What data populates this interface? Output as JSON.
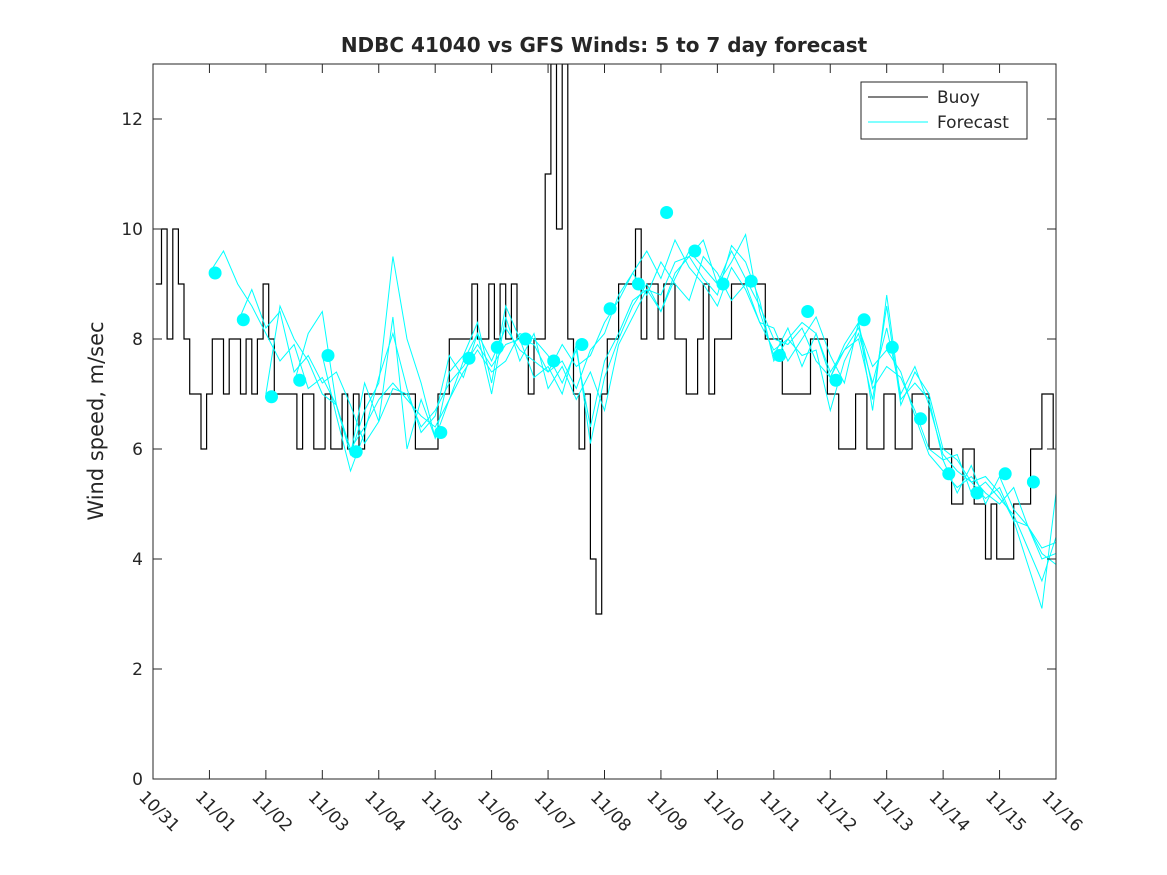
{
  "chart_data": {
    "type": "line",
    "title": "NDBC 41040 vs GFS Winds: 5 to 7 day forecast",
    "xlabel": "",
    "ylabel": "Wind speed, m/sec",
    "ylim": [
      0,
      13
    ],
    "yticks": [
      0,
      2,
      4,
      6,
      8,
      10,
      12
    ],
    "xlim": [
      0,
      16
    ],
    "xtick_labels": [
      "10/31",
      "11/01",
      "11/02",
      "11/03",
      "11/04",
      "11/05",
      "11/06",
      "11/07",
      "11/08",
      "11/09",
      "11/10",
      "11/11",
      "11/12",
      "11/13",
      "11/14",
      "11/15",
      "11/16"
    ],
    "legend": {
      "position": "top-right",
      "entries": [
        "Buoy",
        "Forecast"
      ]
    },
    "colors": {
      "buoy": "#000000",
      "forecast": "#00ffff",
      "axis": "#262626"
    },
    "buoy": {
      "x": [
        0.05,
        0.15,
        0.25,
        0.35,
        0.45,
        0.55,
        0.65,
        0.75,
        0.85,
        0.95,
        1.05,
        1.15,
        1.25,
        1.35,
        1.45,
        1.55,
        1.65,
        1.75,
        1.85,
        1.95,
        2.05,
        2.15,
        2.25,
        2.35,
        2.45,
        2.55,
        2.65,
        2.75,
        2.85,
        2.95,
        3.05,
        3.15,
        3.25,
        3.35,
        3.45,
        3.55,
        3.65,
        3.75,
        3.85,
        3.95,
        4.05,
        4.15,
        4.25,
        4.35,
        4.45,
        4.55,
        4.65,
        4.75,
        4.85,
        4.95,
        5.05,
        5.15,
        5.25,
        5.35,
        5.45,
        5.55,
        5.65,
        5.75,
        5.85,
        5.95,
        6.05,
        6.15,
        6.25,
        6.35,
        6.45,
        6.55,
        6.65,
        6.75,
        6.85,
        6.95,
        7.05,
        7.15,
        7.25,
        7.35,
        7.45,
        7.55,
        7.65,
        7.75,
        7.85,
        7.95,
        8.05,
        8.15,
        8.25,
        8.35,
        8.45,
        8.55,
        8.65,
        8.75,
        8.85,
        8.95,
        9.05,
        9.15,
        9.25,
        9.35,
        9.45,
        9.55,
        9.65,
        9.75,
        9.85,
        9.95,
        10.05,
        10.15,
        10.25,
        10.35,
        10.45,
        10.55,
        10.65,
        10.75,
        10.85,
        10.95,
        11.05,
        11.15,
        11.25,
        11.35,
        11.45,
        11.55,
        11.65,
        11.75,
        11.85,
        11.95,
        12.05,
        12.15,
        12.25,
        12.35,
        12.45,
        12.55,
        12.65,
        12.75,
        12.85,
        12.95,
        13.05,
        13.15,
        13.25,
        13.35,
        13.45,
        13.55,
        13.65,
        13.75,
        13.85,
        13.95,
        14.05,
        14.15,
        14.25,
        14.35,
        14.45,
        14.55,
        14.65,
        14.75,
        14.85,
        14.95,
        15.05,
        15.15,
        15.25,
        15.35,
        15.45,
        15.55,
        15.65,
        15.75,
        15.85,
        15.95
      ],
      "y": [
        9,
        10,
        8,
        10,
        9,
        8,
        7,
        7,
        6,
        7,
        8,
        8,
        7,
        8,
        8,
        7,
        8,
        7,
        8,
        9,
        8,
        7,
        7,
        7,
        7,
        6,
        7,
        7,
        6,
        6,
        7,
        6,
        6,
        7,
        6,
        7,
        6,
        7,
        7,
        7,
        7,
        7,
        7,
        7,
        7,
        7,
        6,
        6,
        6,
        6,
        7,
        7,
        8,
        8,
        8,
        8,
        9,
        8,
        8,
        9,
        8,
        9,
        8,
        9,
        8,
        8,
        7,
        8,
        8,
        11,
        13,
        10,
        13,
        8,
        7,
        6,
        7,
        4,
        3,
        7,
        8,
        8,
        9,
        9,
        9,
        10,
        8,
        9,
        9,
        8,
        9,
        9,
        8,
        8,
        7,
        7,
        8,
        9,
        7,
        8,
        8,
        8,
        9,
        9,
        9,
        9,
        9,
        9,
        8,
        8,
        8,
        7,
        7,
        7,
        7,
        7,
        8,
        8,
        8,
        7,
        7,
        6,
        6,
        6,
        7,
        7,
        6,
        6,
        6,
        7,
        7,
        6,
        6,
        6,
        7,
        7,
        7,
        6,
        6,
        6,
        6,
        5,
        5,
        6,
        6,
        5,
        5,
        4,
        5,
        4,
        4,
        4,
        5,
        5,
        5,
        6,
        6,
        7,
        7,
        6
      ]
    },
    "forecasts": [
      {
        "name": "Forecast 1",
        "x": [
          1.0,
          1.25,
          1.5,
          1.75,
          2.0,
          2.25,
          2.5,
          2.75,
          3.0,
          3.25,
          3.5,
          3.75,
          4.0,
          4.25,
          4.5,
          4.75,
          5.0,
          5.25,
          5.5,
          5.75,
          6.0,
          6.25,
          6.5,
          6.75,
          7.0,
          7.25,
          7.5,
          7.75,
          8.0,
          8.25,
          8.5,
          8.75,
          9.0,
          9.25,
          9.5,
          9.75,
          10.0,
          10.25,
          10.5,
          10.75,
          11.0,
          11.25,
          11.5,
          11.75,
          12.0,
          12.25,
          12.5,
          12.75,
          13.0,
          13.25,
          13.5,
          13.75,
          14.0,
          14.25,
          14.5,
          14.75,
          15.0,
          15.25,
          15.5,
          15.75,
          16.0
        ],
        "y": [
          9.2,
          9.6,
          9.0,
          8.6,
          8.1,
          7.6,
          7.9,
          7.1,
          7.3,
          6.8,
          6.0,
          6.4,
          6.9,
          7.2,
          6.9,
          6.6,
          6.4,
          6.9,
          7.6,
          8.1,
          7.6,
          8.2,
          7.8,
          7.6,
          7.4,
          7.9,
          7.5,
          7.7,
          8.3,
          8.7,
          9.2,
          9.6,
          9.1,
          9.8,
          9.3,
          9.0,
          8.6,
          9.3,
          8.9,
          8.3,
          7.8,
          8.0,
          8.3,
          8.1,
          7.4,
          7.8,
          8.2,
          7.5,
          7.8,
          7.4,
          6.6,
          5.9,
          5.6,
          5.3,
          5.5,
          5.2,
          5.0,
          5.3,
          4.6,
          4.2,
          4.3
        ]
      },
      {
        "name": "Forecast 2",
        "x": [
          1.5,
          1.75,
          2.0,
          2.25,
          2.5,
          2.75,
          3.0,
          3.25,
          3.5,
          3.75,
          4.0,
          4.25,
          4.5,
          4.75,
          5.0,
          5.25,
          5.5,
          5.75,
          6.0,
          6.25,
          6.5,
          6.75,
          7.0,
          7.25,
          7.5,
          7.75,
          8.0,
          8.25,
          8.5,
          8.75,
          9.0,
          9.25,
          9.5,
          9.75,
          10.0,
          10.25,
          10.5,
          10.75,
          11.0,
          11.25,
          11.5,
          11.75,
          12.0,
          12.25,
          12.5,
          12.75,
          13.0,
          13.25,
          13.5,
          13.75,
          14.0,
          14.25,
          14.5,
          14.75,
          15.0,
          15.25,
          15.5,
          15.75,
          16.0
        ],
        "y": [
          8.3,
          8.9,
          8.2,
          8.5,
          7.4,
          7.7,
          7.2,
          7.4,
          6.8,
          6.1,
          6.5,
          7.1,
          7.0,
          6.4,
          6.7,
          7.2,
          7.5,
          7.9,
          7.5,
          7.9,
          8.0,
          7.9,
          7.4,
          7.6,
          7.1,
          7.8,
          8.1,
          8.8,
          9.2,
          8.8,
          9.4,
          9.0,
          8.7,
          9.5,
          9.2,
          8.7,
          9.0,
          8.3,
          8.2,
          7.6,
          8.0,
          8.4,
          7.7,
          7.2,
          8.3,
          7.1,
          7.5,
          7.3,
          6.7,
          6.0,
          5.8,
          5.2,
          5.7,
          5.0,
          5.5,
          4.9,
          4.6,
          4.1,
          3.9
        ]
      },
      {
        "name": "Forecast 3",
        "x": [
          2.0,
          2.25,
          2.5,
          2.75,
          3.0,
          3.25,
          3.5,
          3.75,
          4.0,
          4.25,
          4.5,
          4.75,
          5.0,
          5.25,
          5.5,
          5.75,
          6.0,
          6.25,
          6.5,
          6.75,
          7.0,
          7.25,
          7.5,
          7.75,
          8.0,
          8.25,
          8.5,
          8.75,
          9.0,
          9.25,
          9.5,
          9.75,
          10.0,
          10.25,
          10.5,
          10.75,
          11.0,
          11.25,
          11.5,
          11.75,
          12.0,
          12.25,
          12.5,
          12.75,
          13.0,
          13.25,
          13.5,
          13.75,
          14.0,
          14.25,
          14.5,
          14.75,
          15.0,
          15.25,
          15.5,
          15.75,
          16.0
        ],
        "y": [
          7.0,
          8.6,
          8.0,
          7.6,
          7.0,
          6.8,
          5.9,
          6.7,
          7.2,
          9.5,
          8.0,
          7.2,
          6.2,
          6.9,
          7.4,
          7.8,
          7.4,
          7.6,
          8.1,
          8.0,
          7.7,
          7.2,
          7.8,
          6.4,
          7.6,
          8.1,
          8.7,
          8.9,
          8.5,
          9.2,
          9.5,
          9.8,
          9.0,
          9.6,
          9.1,
          8.6,
          8.0,
          7.9,
          8.2,
          7.6,
          7.3,
          7.8,
          8.0,
          6.9,
          8.6,
          6.8,
          7.4,
          7.0,
          6.0,
          5.8,
          5.4,
          5.1,
          5.3,
          4.7,
          4.6,
          4.0,
          4.1
        ]
      },
      {
        "name": "Forecast 4",
        "x": [
          2.5,
          2.75,
          3.0,
          3.25,
          3.5,
          3.75,
          4.0,
          4.25,
          4.5,
          4.75,
          5.0,
          5.25,
          5.5,
          5.75,
          6.0,
          6.25,
          6.5,
          6.75,
          7.0,
          7.25,
          7.5,
          7.75,
          8.0,
          8.25,
          8.5,
          8.75,
          9.0,
          9.25,
          9.5,
          9.75,
          10.0,
          10.25,
          10.5,
          10.75,
          11.0,
          11.25,
          11.5,
          11.75,
          12.0,
          12.25,
          12.5,
          12.75,
          13.0,
          13.25,
          13.5,
          13.75,
          14.0,
          14.25,
          14.5,
          14.75,
          15.0,
          15.25,
          15.5,
          15.75,
          16.0
        ],
        "y": [
          7.2,
          8.1,
          8.5,
          6.8,
          5.9,
          7.2,
          6.5,
          8.4,
          6.0,
          6.9,
          6.2,
          7.4,
          7.7,
          8.3,
          7.2,
          8.6,
          8.0,
          7.3,
          7.5,
          7.0,
          7.9,
          6.1,
          7.3,
          8.0,
          8.6,
          9.0,
          8.5,
          9.1,
          9.6,
          9.3,
          9.0,
          9.4,
          9.9,
          8.5,
          7.7,
          8.2,
          7.5,
          8.1,
          7.3,
          7.9,
          8.3,
          6.7,
          8.8,
          6.9,
          7.2,
          6.9,
          5.8,
          5.9,
          5.2,
          5.4,
          5.1,
          4.8,
          4.2,
          3.6,
          4.4
        ]
      },
      {
        "name": "Forecast 5",
        "x": [
          3.0,
          3.25,
          3.5,
          3.75,
          4.0,
          4.25,
          4.5,
          4.75,
          5.0,
          5.25,
          5.5,
          5.75,
          6.0,
          6.25,
          6.5,
          6.75,
          7.0,
          7.25,
          7.5,
          7.75,
          8.0,
          8.25,
          8.5,
          8.75,
          9.0,
          9.25,
          9.5,
          9.75,
          10.0,
          10.25,
          10.5,
          10.75,
          11.0,
          11.25,
          11.5,
          11.75,
          12.0,
          12.25,
          12.5,
          12.75,
          13.0,
          13.25,
          13.5,
          13.75,
          14.0,
          14.25,
          14.5,
          14.75,
          15.0,
          15.25,
          15.5,
          15.75,
          16.0
        ],
        "y": [
          7.7,
          6.6,
          5.6,
          6.3,
          7.3,
          8.1,
          7.1,
          6.3,
          6.6,
          7.7,
          7.3,
          8.1,
          7.0,
          8.4,
          7.6,
          8.1,
          7.1,
          7.5,
          6.9,
          7.4,
          6.7,
          7.9,
          8.4,
          8.9,
          8.8,
          9.4,
          9.5,
          9.1,
          8.8,
          9.7,
          9.4,
          8.7,
          7.6,
          8.0,
          7.7,
          7.8,
          6.7,
          7.6,
          8.1,
          7.2,
          8.2,
          7.0,
          7.5,
          6.8,
          5.9,
          5.6,
          5.4,
          5.5,
          5.2,
          4.7,
          3.9,
          3.1,
          5.2
        ]
      }
    ],
    "forecast_markers": {
      "x": [
        1.1,
        1.6,
        2.1,
        2.6,
        3.1,
        3.6,
        5.1,
        5.6,
        6.1,
        6.6,
        7.1,
        7.6,
        8.1,
        8.6,
        9.1,
        9.6,
        10.1,
        10.6,
        11.1,
        11.6,
        12.1,
        12.6,
        13.1,
        13.6,
        14.1,
        14.6,
        15.1,
        15.6
      ],
      "y": [
        9.2,
        8.35,
        6.95,
        7.25,
        7.7,
        5.95,
        6.3,
        7.65,
        7.85,
        8.0,
        7.6,
        7.9,
        8.55,
        9.0,
        10.3,
        9.6,
        9.0,
        9.05,
        7.7,
        8.5,
        7.25,
        8.35,
        7.85,
        6.55,
        5.55,
        5.2,
        5.55,
        5.4
      ]
    }
  }
}
